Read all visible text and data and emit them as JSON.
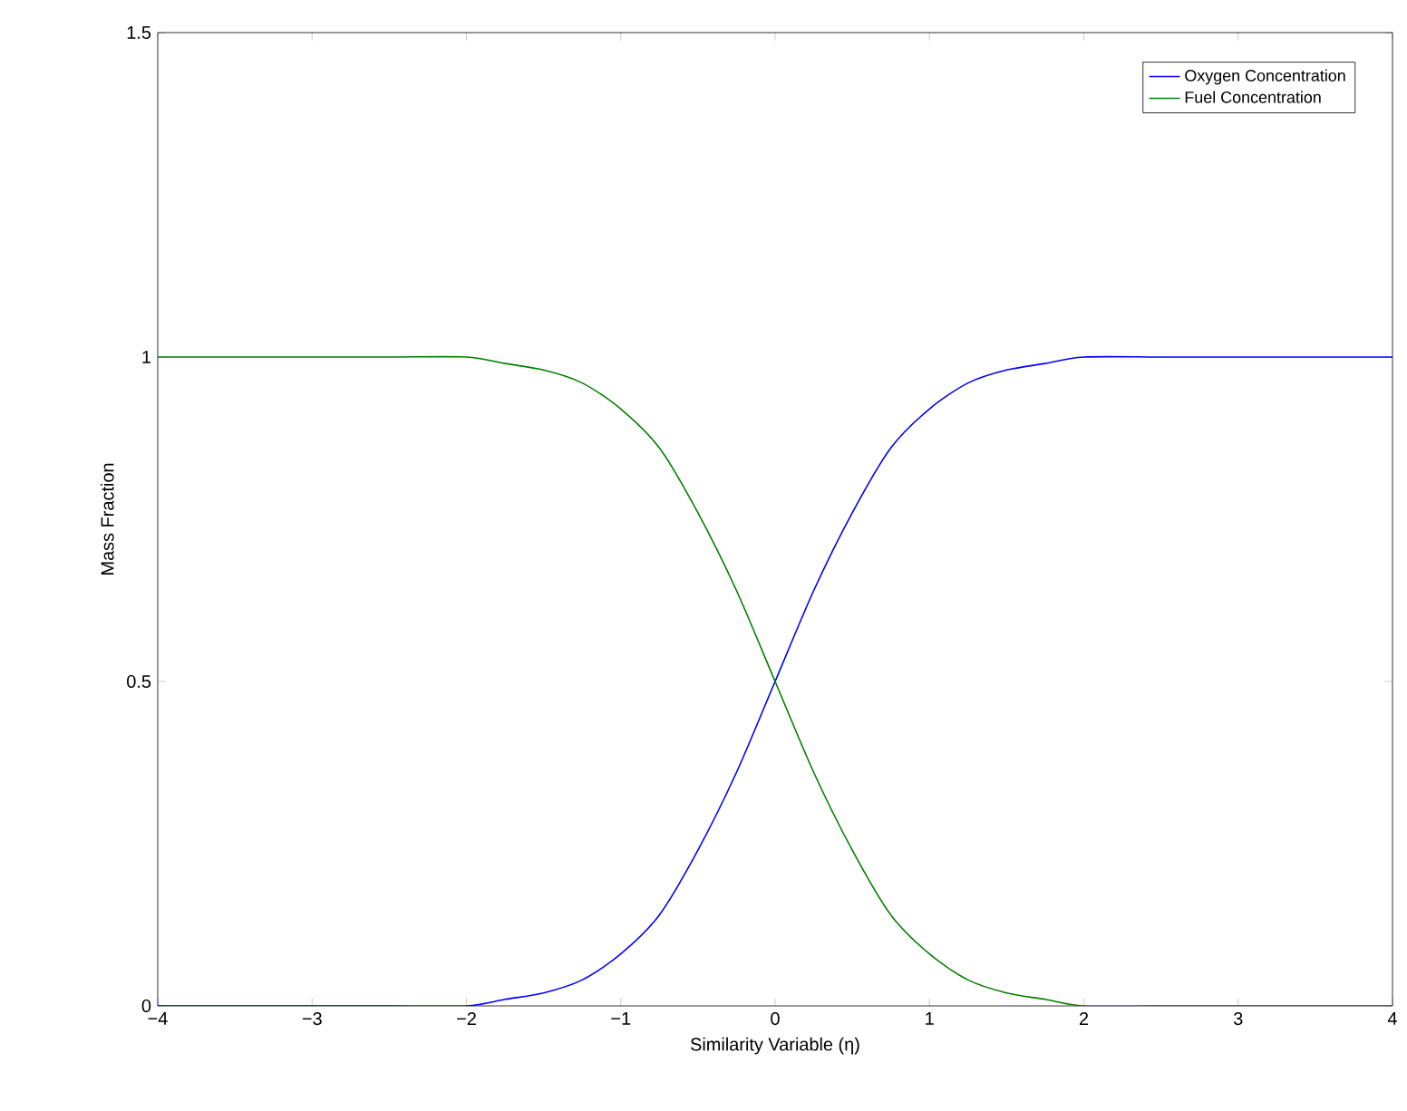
{
  "chart_data": {
    "type": "line",
    "xlabel": "Similarity Variable (η)",
    "ylabel": "Mass Fraction",
    "x": [
      -4,
      -3,
      -2.5,
      -2,
      -1.75,
      -1.5,
      -1.25,
      -1,
      -0.75,
      -0.5,
      -0.25,
      0,
      0.25,
      0.5,
      0.75,
      1,
      1.25,
      1.5,
      1.75,
      2,
      2.5,
      3,
      4
    ],
    "series": [
      {
        "name": "Oxygen Concentration",
        "color": "#0000ff",
        "values": [
          0,
          0,
          0,
          0,
          0.01,
          0.02,
          0.04,
          0.08,
          0.14,
          0.24,
          0.36,
          0.5,
          0.64,
          0.76,
          0.86,
          0.92,
          0.96,
          0.98,
          0.99,
          1,
          1,
          1,
          1
        ]
      },
      {
        "name": "Fuel Concentration",
        "color": "#008000",
        "values": [
          1,
          1,
          1,
          1,
          0.99,
          0.98,
          0.96,
          0.92,
          0.86,
          0.76,
          0.64,
          0.5,
          0.36,
          0.24,
          0.14,
          0.08,
          0.04,
          0.02,
          0.01,
          0,
          0,
          0,
          0
        ]
      }
    ],
    "xlim": [
      -4,
      4
    ],
    "ylim": [
      0,
      1.5
    ],
    "xticks": [
      {
        "value": -4,
        "label": "−4"
      },
      {
        "value": -3,
        "label": "−3"
      },
      {
        "value": -2,
        "label": "−2"
      },
      {
        "value": -1,
        "label": "−1"
      },
      0,
      1,
      2,
      3,
      4
    ],
    "yticks": [
      0,
      0.5,
      1,
      1.5
    ],
    "legend": "top right",
    "grid": false,
    "marker": "none",
    "line_style": "solid"
  }
}
